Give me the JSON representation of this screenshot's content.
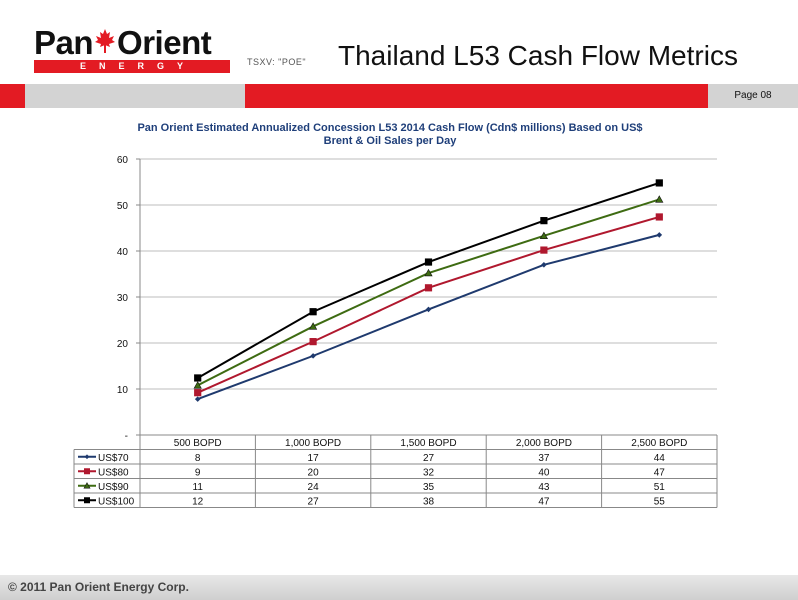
{
  "header": {
    "logo_name_left": "Pan",
    "logo_name_right": "Orient",
    "logo_subtitle": "ENERGY",
    "ticker": "TSXV: \"POE\"",
    "title": "Thailand L53 Cash Flow Metrics",
    "page": "Page 08"
  },
  "footer": {
    "copyright": "© 2011 Pan Orient Energy Corp."
  },
  "colors": {
    "brand_red": "#e31b23",
    "bar_gray": "#d3d3d3"
  },
  "chart_data": {
    "type": "line",
    "title": "Pan Orient Estimated Annualized Concession L53 2014 Cash Flow (Cdn$ millions) Based on US$ Brent & Oil Sales per Day",
    "title_lines": [
      "Pan Orient Estimated Annualized Concession L53 2014 Cash Flow (Cdn$ millions) Based on US$",
      "Brent & Oil Sales per Day"
    ],
    "categories": [
      "500 BOPD",
      "1,000 BOPD",
      "1,500 BOPD",
      "2,000 BOPD",
      "2,500 BOPD"
    ],
    "ylim": [
      0,
      60
    ],
    "yticks": [
      0,
      10,
      20,
      30,
      40,
      50,
      60
    ],
    "ytick_labels": [
      "-",
      "10",
      "20",
      "30",
      "40",
      "50",
      "60"
    ],
    "grid": true,
    "legend": "data-table",
    "series": [
      {
        "name": "US$70",
        "values": [
          7.8,
          17.2,
          27.3,
          37.0,
          43.5
        ],
        "labels": [
          "8",
          "17",
          "27",
          "37",
          "44"
        ],
        "color": "#1f3a6e",
        "marker": "diamond"
      },
      {
        "name": "US$80",
        "values": [
          9.2,
          20.3,
          32.0,
          40.2,
          47.4
        ],
        "labels": [
          "9",
          "20",
          "32",
          "40",
          "47"
        ],
        "color": "#b0182e",
        "marker": "square"
      },
      {
        "name": "US$90",
        "values": [
          10.8,
          23.6,
          35.2,
          43.3,
          51.2
        ],
        "labels": [
          "11",
          "24",
          "35",
          "43",
          "51"
        ],
        "color": "#3e6b12",
        "marker": "triangle"
      },
      {
        "name": "US$100",
        "values": [
          12.4,
          26.8,
          37.6,
          46.6,
          54.8
        ],
        "labels": [
          "12",
          "27",
          "38",
          "47",
          "55"
        ],
        "color": "#000000",
        "marker": "square"
      }
    ]
  }
}
